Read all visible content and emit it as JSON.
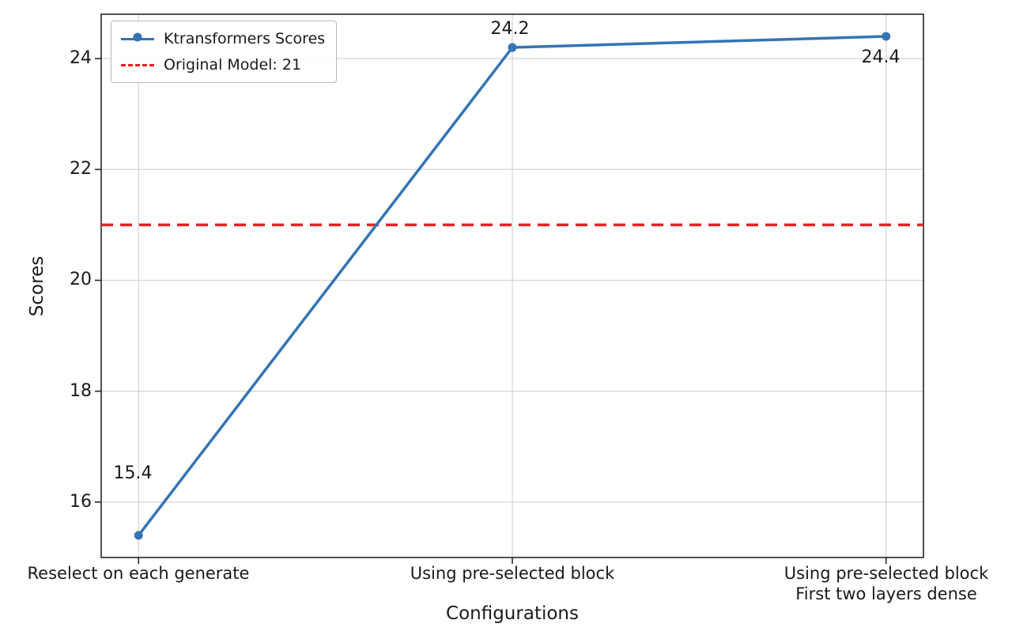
{
  "chart_data": {
    "type": "line",
    "title": "",
    "xlabel": "Configurations",
    "ylabel": "Scores",
    "categories": [
      "Reselect on each generate",
      "Using pre-selected block",
      "Using pre-selected block\nFirst two layers dense"
    ],
    "series": [
      {
        "name": "Ktransformers Scores",
        "values": [
          15.4,
          24.2,
          24.4
        ],
        "color": "#3474b3",
        "marker": "circle"
      }
    ],
    "reference_line": {
      "label": "Original Model: 21",
      "value": 21,
      "color": "#e32222",
      "style": "dashed"
    },
    "point_labels": [
      "15.4",
      "24.2",
      "24.4"
    ],
    "yticks": [
      16,
      18,
      20,
      22,
      24
    ],
    "ylim": [
      15.0,
      24.8
    ],
    "grid": true,
    "grid_color": "#d6d6d6",
    "axis_color": "#262626",
    "legend_position": "upper-left"
  }
}
